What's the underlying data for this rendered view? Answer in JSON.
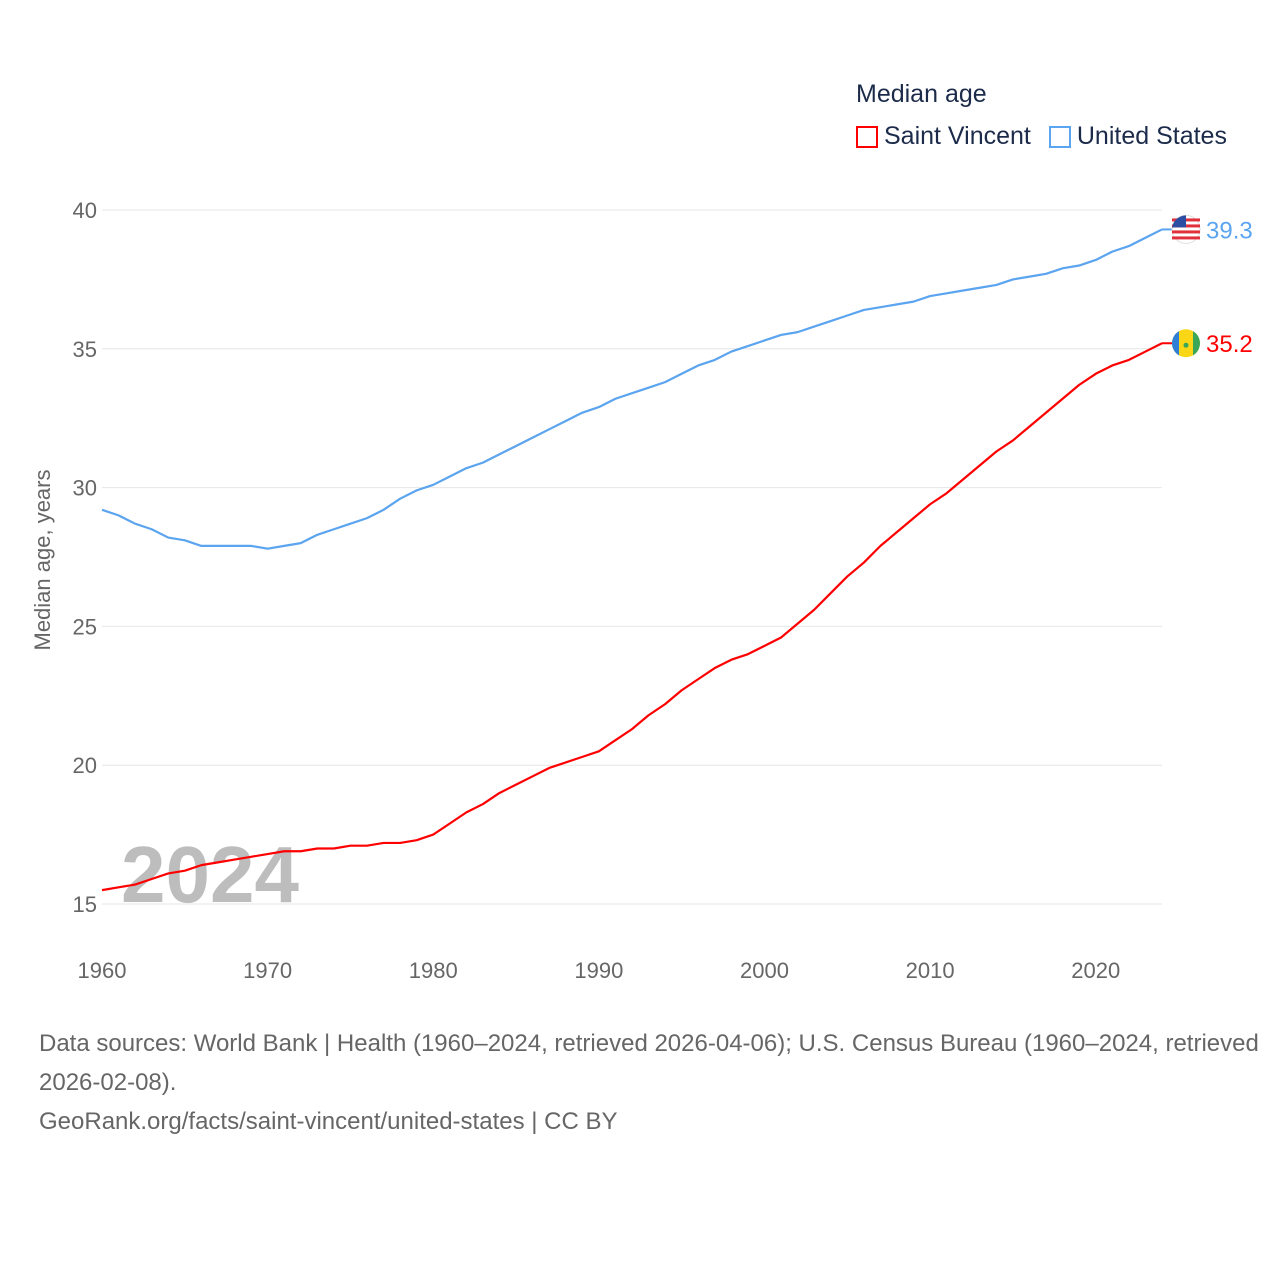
{
  "legend": {
    "title": "Median age",
    "items": [
      {
        "label": "Saint Vincent",
        "color": "#ff0000"
      },
      {
        "label": "United States",
        "color": "#5ba4ef"
      }
    ]
  },
  "watermark_year": "2024",
  "footer": {
    "sources": "Data sources: World Bank | Health (1960–2024, retrieved 2026-04-06); U.S. Census Bureau (1960–2024, retrieved 2026-02-08).",
    "attribution": "GeoRank.org/facts/saint-vincent/united-states | CC BY"
  },
  "chart_data": {
    "type": "line",
    "title": "Median age",
    "xlabel": "",
    "ylabel": "Median age, years",
    "xlim": [
      1960,
      2024
    ],
    "ylim": [
      15,
      40
    ],
    "xticks": [
      "1960",
      "1970",
      "1980",
      "1990",
      "2000",
      "2010",
      "2020"
    ],
    "yticks": [
      "15",
      "20",
      "25",
      "30",
      "35",
      "40"
    ],
    "grid": true,
    "legend_position": "top-right",
    "x_start": 1960,
    "series": [
      {
        "name": "Saint Vincent",
        "color": "#ff0000",
        "end_label": "35.2",
        "values": [
          15.5,
          15.6,
          15.7,
          15.9,
          16.1,
          16.2,
          16.4,
          16.5,
          16.6,
          16.7,
          16.8,
          16.9,
          16.9,
          17.0,
          17.0,
          17.1,
          17.1,
          17.2,
          17.2,
          17.3,
          17.5,
          17.9,
          18.3,
          18.6,
          19.0,
          19.3,
          19.6,
          19.9,
          20.1,
          20.3,
          20.5,
          20.9,
          21.3,
          21.8,
          22.2,
          22.7,
          23.1,
          23.5,
          23.8,
          24.0,
          24.3,
          24.6,
          25.1,
          25.6,
          26.2,
          26.8,
          27.3,
          27.9,
          28.4,
          28.9,
          29.4,
          29.8,
          30.3,
          30.8,
          31.3,
          31.7,
          32.2,
          32.7,
          33.2,
          33.7,
          34.1,
          34.4,
          34.6,
          34.9,
          35.2
        ]
      },
      {
        "name": "United States",
        "color": "#5ba4ef",
        "end_label": "39.3",
        "values": [
          29.2,
          29.0,
          28.7,
          28.5,
          28.2,
          28.1,
          27.9,
          27.9,
          27.9,
          27.9,
          27.8,
          27.9,
          28.0,
          28.3,
          28.5,
          28.7,
          28.9,
          29.2,
          29.6,
          29.9,
          30.1,
          30.4,
          30.7,
          30.9,
          31.2,
          31.5,
          31.8,
          32.1,
          32.4,
          32.7,
          32.9,
          33.2,
          33.4,
          33.6,
          33.8,
          34.1,
          34.4,
          34.6,
          34.9,
          35.1,
          35.3,
          35.5,
          35.6,
          35.8,
          36.0,
          36.2,
          36.4,
          36.5,
          36.6,
          36.7,
          36.9,
          37.0,
          37.1,
          37.2,
          37.3,
          37.5,
          37.6,
          37.7,
          37.9,
          38.0,
          38.2,
          38.5,
          38.7,
          39.0,
          39.3
        ]
      }
    ]
  }
}
